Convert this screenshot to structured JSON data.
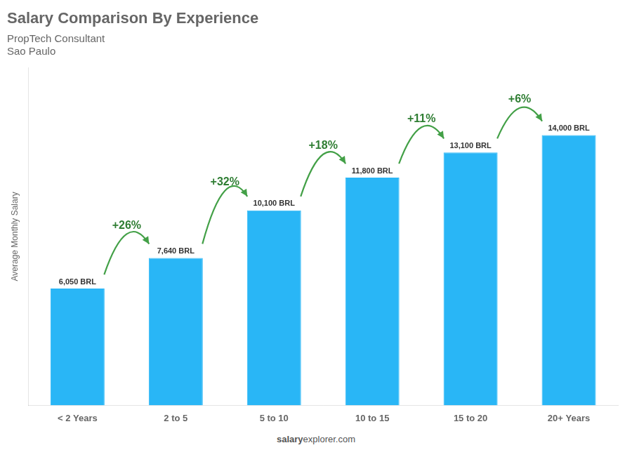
{
  "chart_data": {
    "type": "bar",
    "title": "Salary Comparison By Experience",
    "subtitle": "PropTech Consultant",
    "city": "Sao Paulo",
    "ylabel": "Average Monthly Salary",
    "categories": [
      "< 2 Years",
      "2 to 5",
      "5 to 10",
      "10 to 15",
      "15 to 20",
      "20+ Years"
    ],
    "values": [
      6050,
      7640,
      10100,
      11800,
      13100,
      14000
    ],
    "value_labels": [
      "6,050 BRL",
      "7,640 BRL",
      "10,100 BRL",
      "11,800 BRL",
      "13,100 BRL",
      "14,000 BRL"
    ],
    "data_labels": true,
    "color": "#29B6F6",
    "annotations": [
      "+26%",
      "+32%",
      "+18%",
      "+11%",
      "+6%"
    ],
    "watermark": [
      "salary",
      "explorer.com"
    ],
    "ylim": [
      0,
      17500
    ],
    "tick_labels": "x",
    "grid": false
  }
}
